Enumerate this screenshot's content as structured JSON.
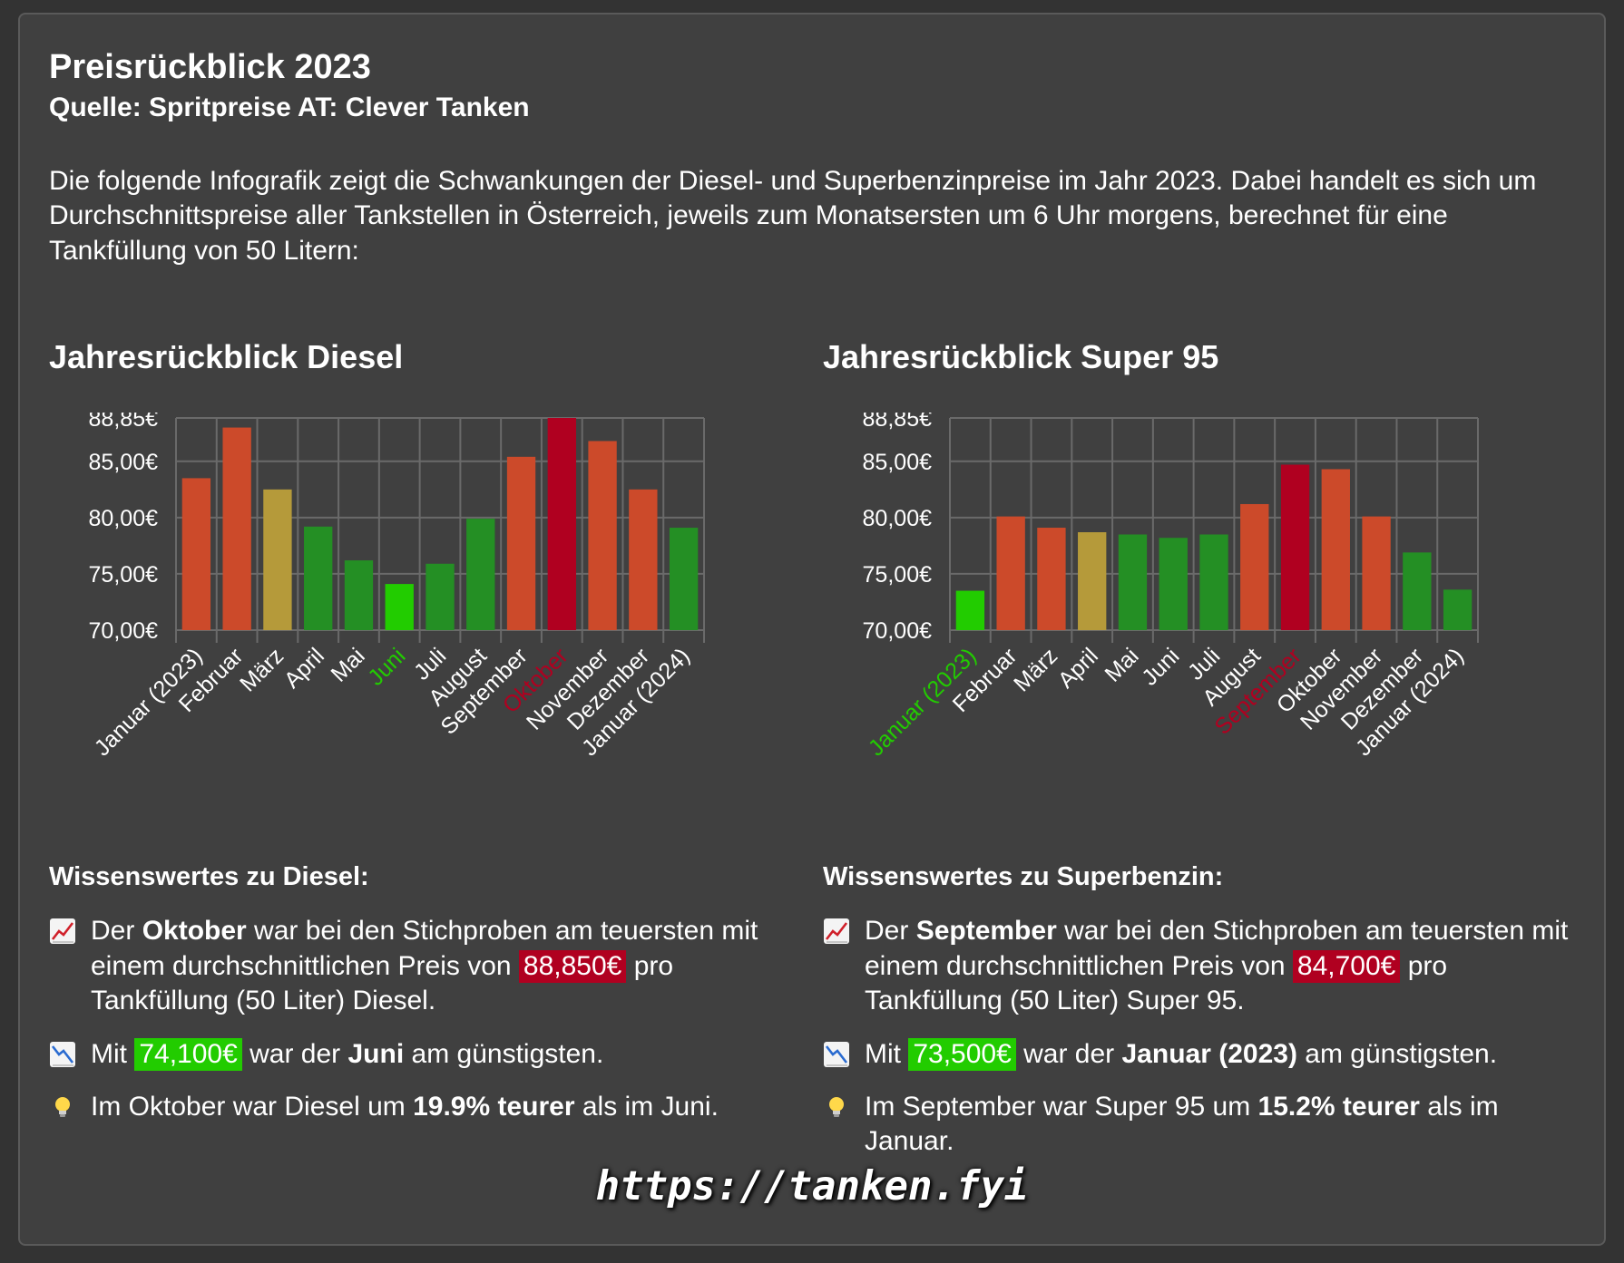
{
  "header": {
    "title": "Preisrückblick 2023",
    "subtitle": "Quelle: Spritpreise AT: Clever Tanken",
    "intro": "Die folgende Infografik zeigt die Schwankungen der Diesel- und Superbenzinpreise im Jahr 2023. Dabei handelt es sich um Durchschnittspreise aller Tankstellen in Österreich, jeweils zum Monatsersten um 6 Uhr morgens, berechnet für eine Tankfüllung von 50 Litern:"
  },
  "colors": {
    "background": "#333333",
    "card": "#404040",
    "high": "#b00020",
    "low": "#22cc00",
    "orange": "#cc4a2a",
    "olive": "#b59a3a",
    "green": "#248f24",
    "grid": "#6a6a6a"
  },
  "chart_data": [
    {
      "type": "bar",
      "title": "Jahresrückblick Diesel",
      "categories": [
        "Januar (2023)",
        "Februar",
        "März",
        "April",
        "Mai",
        "Juni",
        "Juli",
        "August",
        "September",
        "Oktober",
        "November",
        "Dezember",
        "Januar (2024)"
      ],
      "values": [
        83.5,
        88.0,
        82.5,
        79.2,
        76.2,
        74.1,
        75.9,
        79.9,
        85.4,
        88.85,
        86.8,
        82.5,
        79.1
      ],
      "bar_colors": [
        "#cc4a2a",
        "#cc4a2a",
        "#b59a3a",
        "#248f24",
        "#248f24",
        "#22cc00",
        "#248f24",
        "#248f24",
        "#cc4a2a",
        "#b00020",
        "#cc4a2a",
        "#cc4a2a",
        "#248f24"
      ],
      "label_colors": [
        "#ffffff",
        "#ffffff",
        "#ffffff",
        "#ffffff",
        "#ffffff",
        "#22cc00",
        "#ffffff",
        "#ffffff",
        "#ffffff",
        "#b00020",
        "#ffffff",
        "#ffffff",
        "#ffffff"
      ],
      "yticks": [
        "88,85€",
        "85,00€",
        "80,00€",
        "75,00€",
        "70,00€"
      ],
      "ytick_values": [
        88.85,
        85,
        80,
        75,
        70
      ],
      "ylim": [
        70,
        88.85
      ],
      "grid": true
    },
    {
      "type": "bar",
      "title": "Jahresrückblick Super 95",
      "categories": [
        "Januar (2023)",
        "Februar",
        "März",
        "April",
        "Mai",
        "Juni",
        "Juli",
        "August",
        "September",
        "Oktober",
        "November",
        "Dezember",
        "Januar (2024)"
      ],
      "values": [
        73.5,
        80.1,
        79.1,
        78.7,
        78.5,
        78.2,
        78.5,
        81.2,
        84.7,
        84.3,
        80.1,
        76.9,
        73.6
      ],
      "bar_colors": [
        "#22cc00",
        "#cc4a2a",
        "#cc4a2a",
        "#b59a3a",
        "#248f24",
        "#248f24",
        "#248f24",
        "#cc4a2a",
        "#b00020",
        "#cc4a2a",
        "#cc4a2a",
        "#248f24",
        "#248f24"
      ],
      "label_colors": [
        "#22cc00",
        "#ffffff",
        "#ffffff",
        "#ffffff",
        "#ffffff",
        "#ffffff",
        "#ffffff",
        "#ffffff",
        "#b00020",
        "#ffffff",
        "#ffffff",
        "#ffffff",
        "#ffffff"
      ],
      "yticks": [
        "88,85€",
        "85,00€",
        "80,00€",
        "75,00€",
        "70,00€"
      ],
      "ytick_values": [
        88.85,
        85,
        80,
        75,
        70
      ],
      "ylim": [
        70,
        88.85
      ],
      "grid": true
    }
  ],
  "diesel": {
    "info_title": "Wissenswertes zu Diesel:",
    "f1_a": "Der ",
    "f1_month": "Oktober",
    "f1_b": " war bei den Stichproben am teuersten mit einem durchschnittlichen Preis von ",
    "f1_price": "88,850€",
    "f1_c": " pro Tankfüllung (50 Liter) Diesel.",
    "f2_a": "Mit ",
    "f2_price": "74,100€",
    "f2_b": " war der ",
    "f2_month": "Juni",
    "f2_c": " am günstigsten.",
    "f3_a": "Im Oktober war Diesel um ",
    "f3_pct": "19.9% teurer",
    "f3_b": " als im Juni."
  },
  "super": {
    "info_title": "Wissenswertes zu Superbenzin:",
    "f1_a": "Der ",
    "f1_month": "September",
    "f1_b": " war bei den Stichproben am teuersten mit einem durchschnittlichen Preis von ",
    "f1_price": "84,700€",
    "f1_c": " pro Tankfüllung (50 Liter) Super 95.",
    "f2_a": "Mit ",
    "f2_price": "73,500€",
    "f2_b": " war der ",
    "f2_month": "Januar (2023)",
    "f2_c": " am günstigsten.",
    "f3_a": "Im September war Super 95 um ",
    "f3_pct": "15.2% teurer",
    "f3_b": " als im Januar."
  },
  "icons": {
    "up": "chart-increasing-icon",
    "down": "chart-decreasing-icon",
    "tip": "light-bulb-icon"
  },
  "footer": {
    "url": "https://tanken.fyi"
  }
}
